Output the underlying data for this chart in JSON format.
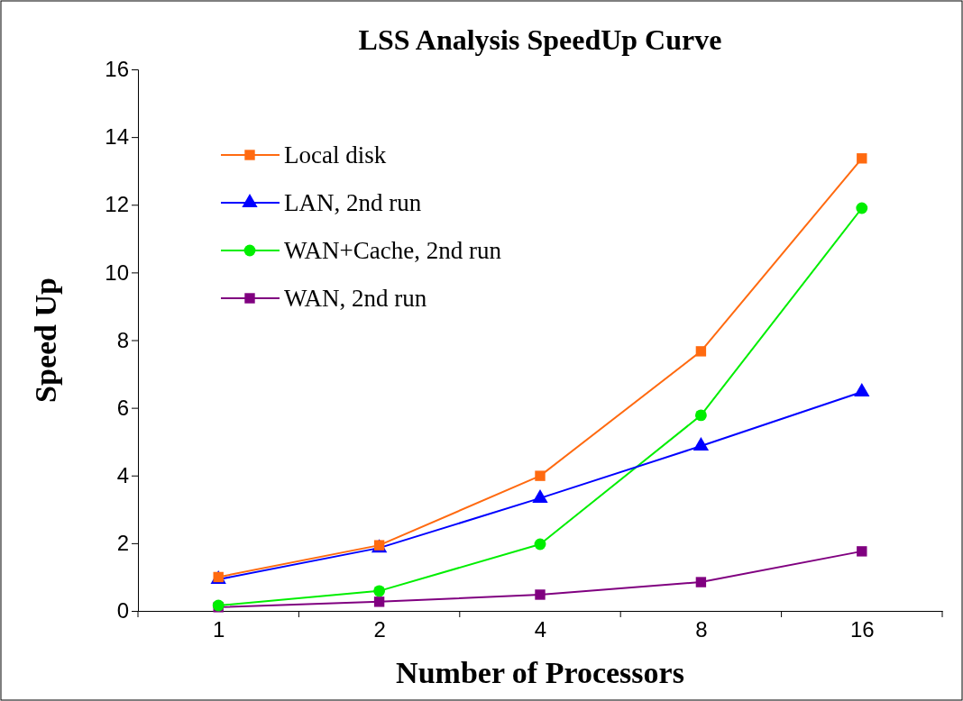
{
  "chart_data": {
    "type": "line",
    "title": "LSS Analysis SpeedUp Curve",
    "xlabel": "Number of Processors",
    "ylabel": "Speed Up",
    "categories": [
      "1",
      "2",
      "4",
      "8",
      "16"
    ],
    "ylim": [
      0,
      16
    ],
    "yticks": [
      0,
      2,
      4,
      6,
      8,
      10,
      12,
      14,
      16
    ],
    "grid": false,
    "legend": "top left",
    "series": [
      {
        "name": "Local disk",
        "color": "#ff6a10",
        "marker": "square",
        "values": [
          1.0,
          1.94,
          3.99,
          7.67,
          13.37
        ]
      },
      {
        "name": "LAN, 2nd run",
        "color": "#0000ff",
        "marker": "triangle",
        "values": [
          0.93,
          1.86,
          3.33,
          4.87,
          6.47
        ]
      },
      {
        "name": "WAN+Cache, 2nd run",
        "color": "#00ee00",
        "marker": "circle",
        "values": [
          0.16,
          0.59,
          1.97,
          5.78,
          11.9
        ]
      },
      {
        "name": "WAN, 2nd run",
        "color": "#800080",
        "marker": "square",
        "values": [
          0.11,
          0.27,
          0.48,
          0.85,
          1.76
        ]
      }
    ]
  }
}
